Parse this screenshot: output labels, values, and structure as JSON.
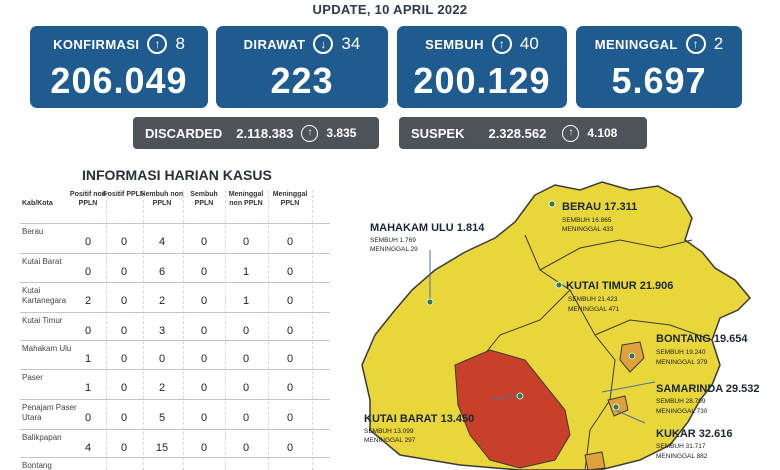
{
  "update": "UPDATE, 10 APRIL 2022",
  "stats": {
    "konfirmasi": {
      "label": "KONFIRMASI",
      "arrow": "up",
      "delta": "8",
      "value": "206.049"
    },
    "dirawat": {
      "label": "DIRAWAT",
      "arrow": "down",
      "delta": "34",
      "value": "223"
    },
    "sembuh": {
      "label": "SEMBUH",
      "arrow": "up",
      "delta": "40",
      "value": "200.129"
    },
    "meninggal": {
      "label": "MENINGGAL",
      "arrow": "up",
      "delta": "2",
      "value": "5.697"
    }
  },
  "discarded": {
    "label": "DISCARDED",
    "value": "2.118.383",
    "delta": "3.835"
  },
  "suspek": {
    "label": "SUSPEK",
    "value": "2.328.562",
    "delta": "4.108"
  },
  "table": {
    "title": "INFORMASI HARIAN KASUS",
    "headers": [
      "Kab/Kota",
      "Positif non PPLN",
      "Positif PPLN",
      "Sembuh non PPLN",
      "Sembuh PPLN",
      "Meninggal non PPLN",
      "Meninggal PPLN"
    ],
    "rows": [
      {
        "name": "Berau",
        "values": [
          "0",
          "0",
          "4",
          "0",
          "0",
          "0"
        ]
      },
      {
        "name": "Kutai Barat",
        "values": [
          "0",
          "0",
          "6",
          "0",
          "1",
          "0"
        ]
      },
      {
        "name": "Kutai Kartanegara",
        "values": [
          "2",
          "0",
          "2",
          "0",
          "1",
          "0"
        ]
      },
      {
        "name": "Kutai Timur",
        "values": [
          "0",
          "0",
          "3",
          "0",
          "0",
          "0"
        ]
      },
      {
        "name": "Mahakam Ulu",
        "values": [
          "1",
          "0",
          "0",
          "0",
          "0",
          "0"
        ]
      },
      {
        "name": "Paser",
        "values": [
          "1",
          "0",
          "2",
          "0",
          "0",
          "0"
        ]
      },
      {
        "name": "Penajam Paser Utara",
        "values": [
          "0",
          "0",
          "5",
          "0",
          "0",
          "0"
        ]
      },
      {
        "name": "Balikpapan",
        "values": [
          "4",
          "0",
          "15",
          "0",
          "0",
          "0"
        ]
      },
      {
        "name": "Bontang",
        "values": [
          "",
          "",
          "",
          "",
          "",
          ""
        ]
      }
    ]
  },
  "map": {
    "colors": {
      "yellow": "#e8d63a",
      "red": "#c8402a",
      "orange": "#e0a03a",
      "border": "#3a3a3a",
      "dot": "#2e7d4f"
    },
    "regions": [
      {
        "name": "BERAU",
        "total": "17.311",
        "sembuh": "SEMBUH 16.865",
        "meninggal": "MENINGGAL 433"
      },
      {
        "name": "MAHAKAM ULU",
        "total": "1.814",
        "sembuh": "SEMBUH 1.769",
        "meninggal": "MENINGGAL 29"
      },
      {
        "name": "KUTAI TIMUR",
        "total": "21.906",
        "sembuh": "SEMBUH 21.423",
        "meninggal": "MENINGGAL 471"
      },
      {
        "name": "BONTANG",
        "total": "19.654",
        "sembuh": "SEMBUH 19.240",
        "meninggal": "MENINGGAL 379"
      },
      {
        "name": "SAMARINDA",
        "total": "29.532",
        "sembuh": "SEMBUH 28.799",
        "meninggal": "MENINGGAL 730"
      },
      {
        "name": "KUTAI BARAT",
        "total": "13.450",
        "sembuh": "SEMBUH 13.099",
        "meninggal": "MENINGGAL 297"
      },
      {
        "name": "KUKAR",
        "total": "32.616",
        "sembuh": "SEMBUH 31.717",
        "meninggal": "MENINGGAL 882"
      }
    ]
  }
}
